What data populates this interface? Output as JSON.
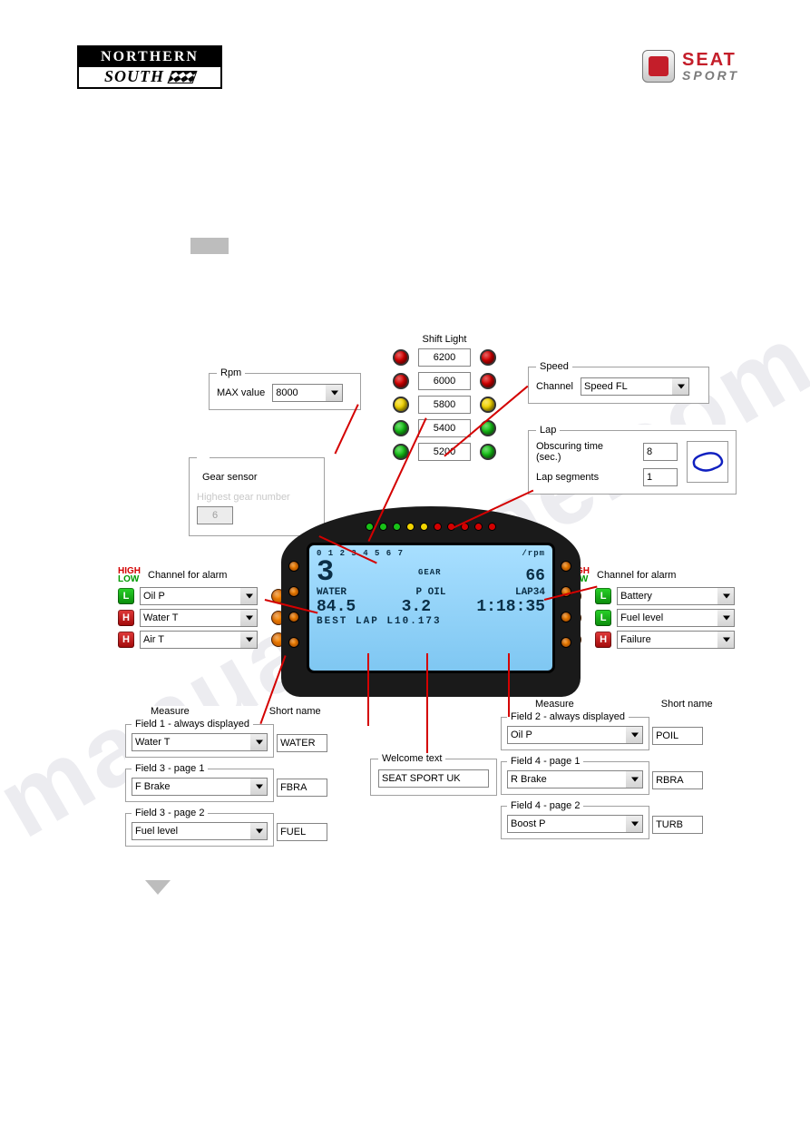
{
  "logos": {
    "left_top": "NORTHERN",
    "left_bottom": "SOUTH",
    "right_brand": "SEAT",
    "right_sub": "SPORT"
  },
  "watermark": "manualszone.com",
  "colors": {
    "led_red": "#d40000",
    "led_yellow": "#f2d400",
    "led_green": "#18c218",
    "led_amber": "#ff8a00",
    "badge_low": "#18c218",
    "badge_high": "#d11313",
    "pointer": "#d40000",
    "screen_bg_top": "#a8dfff",
    "screen_bg_bot": "#7fc7f2"
  },
  "rpm": {
    "legend": "Rpm",
    "label": "MAX value",
    "value": "8000"
  },
  "shift_light": {
    "title": "Shift Light",
    "rows": [
      {
        "left": "red",
        "value": "6200",
        "right": "red"
      },
      {
        "left": "red",
        "value": "6000",
        "right": "red"
      },
      {
        "left": "yellow",
        "value": "5800",
        "right": "yellow"
      },
      {
        "left": "green",
        "value": "5400",
        "right": "green"
      },
      {
        "left": "green",
        "value": "5200",
        "right": "green"
      }
    ]
  },
  "speed": {
    "legend": "Speed",
    "label": "Channel",
    "value": "Speed FL"
  },
  "lap": {
    "legend": "Lap",
    "obscuring_label": "Obscuring time (sec.)",
    "obscuring_value": "8",
    "segments_label": "Lap segments",
    "segments_value": "1"
  },
  "gear": {
    "legend": "Gear sensor",
    "label": "Highest gear number",
    "value": "6"
  },
  "alarms_left": {
    "header": "Channel for alarm",
    "rows": [
      {
        "badge": "L",
        "channel": "Oil P"
      },
      {
        "badge": "H",
        "channel": "Water T"
      },
      {
        "badge": "H",
        "channel": "Air T"
      }
    ]
  },
  "alarms_right": {
    "header": "Channel for alarm",
    "rows": [
      {
        "badge": "L",
        "channel": "Battery"
      },
      {
        "badge": "L",
        "channel": "Fuel level"
      },
      {
        "badge": "H",
        "channel": "Failure"
      }
    ]
  },
  "display": {
    "rpm_ticks": "0 1 2 3 4 5 6 7",
    "rpm_label": "/rpm",
    "gear_label": "GEAR",
    "gear_value": "3",
    "speed_value": "66",
    "line2_left": "WATER",
    "line2_mid": "P OIL",
    "line2_right": "LAP34",
    "line3_left": "84.5",
    "line3_mid": "3.2",
    "line3_right": "1:18:35",
    "line4": "BEST  LAP  L10.173"
  },
  "fields_left": {
    "measure_title": "Measure",
    "short_title": "Short name",
    "rows": [
      {
        "legend": "Field 1 - always displayed",
        "measure": "Water T",
        "short": "WATER"
      },
      {
        "legend": "Field 3 - page 1",
        "measure": "F Brake",
        "short": "FBRA"
      },
      {
        "legend": "Field 3 - page 2",
        "measure": "Fuel level",
        "short": "FUEL"
      }
    ]
  },
  "fields_right": {
    "measure_title": "Measure",
    "short_title": "Short name",
    "rows": [
      {
        "legend": "Field 2 - always displayed",
        "measure": "Oil P",
        "short": "POIL"
      },
      {
        "legend": "Field 4 - page 1",
        "measure": "R Brake",
        "short": "RBRA"
      },
      {
        "legend": "Field 4 - page 2",
        "measure": "Boost P",
        "short": "TURB"
      }
    ]
  },
  "welcome": {
    "legend": "Welcome text",
    "value": "SEAT SPORT UK"
  }
}
